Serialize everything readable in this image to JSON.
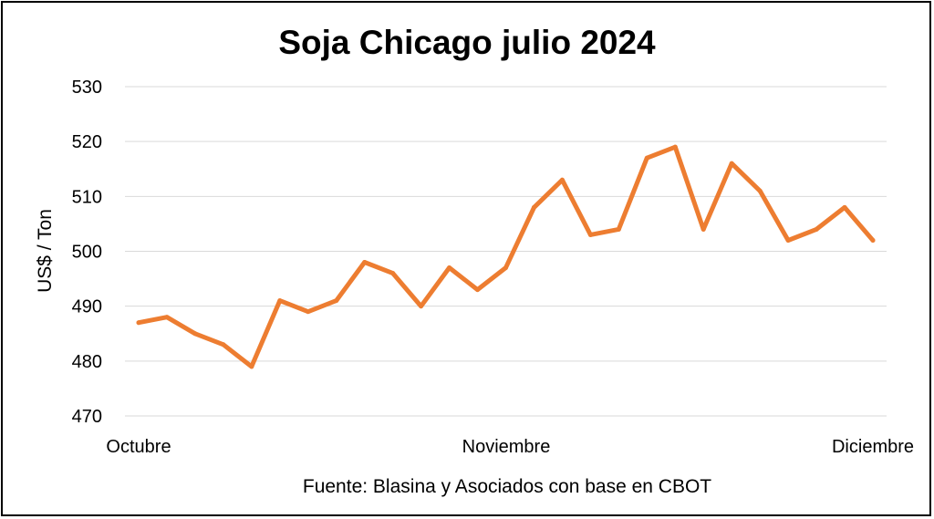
{
  "chart_data": {
    "type": "line",
    "title": "Soja Chicago julio 2024",
    "source": "Fuente: Blasina y Asociados con base en CBOT",
    "ylabel": "US$ / Ton",
    "xlabel": "",
    "ylim": [
      470,
      530
    ],
    "yticks": [
      470,
      480,
      490,
      500,
      510,
      520,
      530
    ],
    "x_tick_labels": [
      "Octubre",
      "Noviembre",
      "Diciembre"
    ],
    "grid": true,
    "line_color": "#ED7D31",
    "series": [
      {
        "values": [
          487,
          488,
          485,
          483,
          479,
          491,
          489,
          491,
          498,
          496,
          490,
          497,
          493,
          497,
          508,
          513,
          503,
          504,
          517,
          519,
          504,
          516,
          511,
          502,
          504,
          508,
          502
        ]
      }
    ]
  }
}
